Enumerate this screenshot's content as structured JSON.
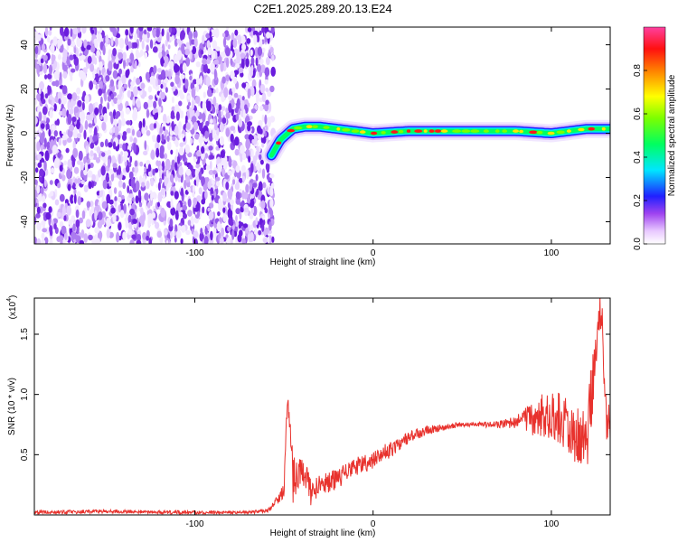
{
  "title": "C2E1.2025.289.20.13.E24",
  "chart_data": [
    {
      "type": "heatmap",
      "xlabel": "Height of straight line (km)",
      "ylabel": "Frequency (Hz)",
      "xlim": [
        -190,
        133
      ],
      "ylim": [
        -50,
        48
      ],
      "xticks": [
        -100,
        0,
        100
      ],
      "yticks": [
        -40,
        -20,
        0,
        20,
        40
      ],
      "colorbar": {
        "label": "Normalized spectral amplitude",
        "range": [
          0,
          1
        ],
        "ticks": [
          0.0,
          0.2,
          0.4,
          0.6,
          0.8
        ]
      },
      "noise_region_x": [
        -190,
        -56
      ],
      "signal_line": {
        "x": [
          -57,
          -52,
          -45,
          -38,
          -30,
          -20,
          -10,
          0,
          20,
          40,
          60,
          80,
          100,
          110,
          120,
          133
        ],
        "freq": [
          -10,
          -3,
          2,
          3,
          3,
          2,
          1,
          0,
          1,
          1,
          1,
          1,
          0,
          1,
          2,
          2
        ]
      },
      "grid": false
    },
    {
      "type": "line",
      "xlabel": "Height of straight line (km)",
      "ylabel": "SNR (10 * v/v)",
      "y_multiplier_label": "(x10",
      "y_multiplier_exp": "4",
      "xlim": [
        -190,
        133
      ],
      "ylim": [
        0,
        1.8
      ],
      "xticks": [
        -100,
        0,
        100
      ],
      "yticks": [
        0.5,
        1.0,
        1.5
      ],
      "ytick_labels": [
        "0.5",
        "1.0",
        "1.5"
      ],
      "color": "#e8322d",
      "grid": false,
      "series": [
        {
          "x": [
            -190,
            -150,
            -100,
            -70,
            -58,
            -50,
            -48,
            -45,
            -42,
            -40,
            -35,
            -30,
            -20,
            -10,
            0,
            10,
            20,
            30,
            40,
            50,
            60,
            70,
            80,
            90,
            100,
            110,
            120,
            125,
            128,
            130,
            133
          ],
          "y": [
            0.02,
            0.03,
            0.02,
            0.02,
            0.04,
            0.2,
            1.0,
            0.3,
            0.35,
            0.4,
            0.2,
            0.25,
            0.3,
            0.4,
            0.45,
            0.55,
            0.65,
            0.7,
            0.73,
            0.75,
            0.75,
            0.75,
            0.77,
            0.8,
            0.85,
            0.75,
            0.6,
            1.4,
            1.8,
            0.8,
            0.8
          ],
          "noise": [
            0.015,
            0.015,
            0.015,
            0.012,
            0.02,
            0.06,
            0.05,
            0.25,
            0.15,
            0.12,
            0.12,
            0.1,
            0.08,
            0.08,
            0.07,
            0.07,
            0.05,
            0.04,
            0.03,
            0.02,
            0.02,
            0.03,
            0.05,
            0.15,
            0.22,
            0.25,
            0.3,
            0.25,
            0.25,
            0.22,
            0.22
          ]
        }
      ]
    }
  ]
}
